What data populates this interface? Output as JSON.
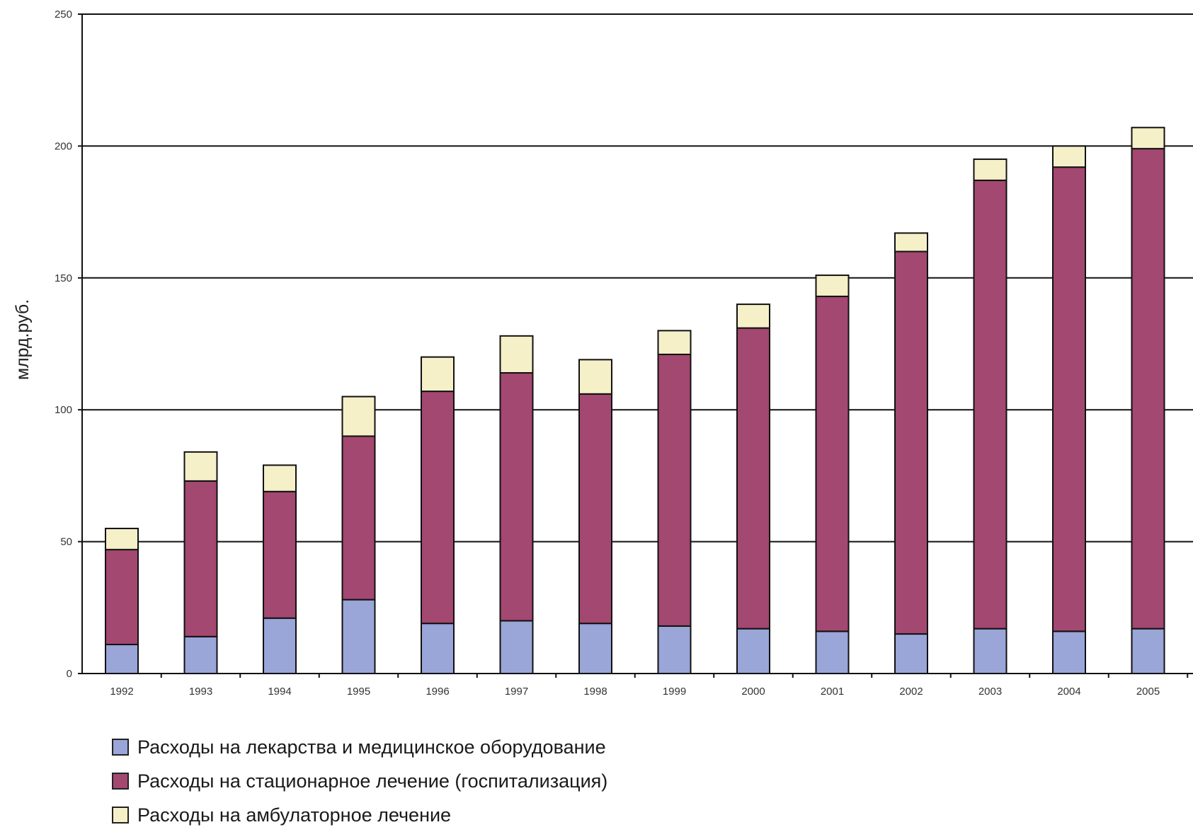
{
  "chart_data": {
    "type": "bar",
    "stacked": true,
    "title": "",
    "xlabel": "",
    "ylabel": "млрд.руб.",
    "ylim": [
      0,
      250
    ],
    "yticks": [
      0,
      50,
      100,
      150,
      200,
      250
    ],
    "grid": true,
    "legend_position": "bottom",
    "categories": [
      "1992",
      "1993",
      "1994",
      "1995",
      "1996",
      "1997",
      "1998",
      "1999",
      "2000",
      "2001",
      "2002",
      "2003",
      "2004",
      "2005"
    ],
    "series": [
      {
        "name": "Расходы на лекарства и медицинское оборудование",
        "color": "#9aa5d8",
        "values": [
          11,
          14,
          21,
          28,
          19,
          20,
          19,
          18,
          17,
          16,
          15,
          17,
          16,
          17
        ]
      },
      {
        "name": "Расходы на стационарное лечение (госпитализация)",
        "color": "#a34870",
        "values": [
          36,
          59,
          48,
          62,
          88,
          94,
          87,
          103,
          114,
          127,
          145,
          170,
          176,
          182
        ]
      },
      {
        "name": "Расходы на амбулаторное лечение",
        "color": "#f5f0c8",
        "values": [
          8,
          11,
          10,
          15,
          13,
          14,
          13,
          9,
          9,
          8,
          7,
          8,
          8,
          8
        ]
      }
    ]
  }
}
